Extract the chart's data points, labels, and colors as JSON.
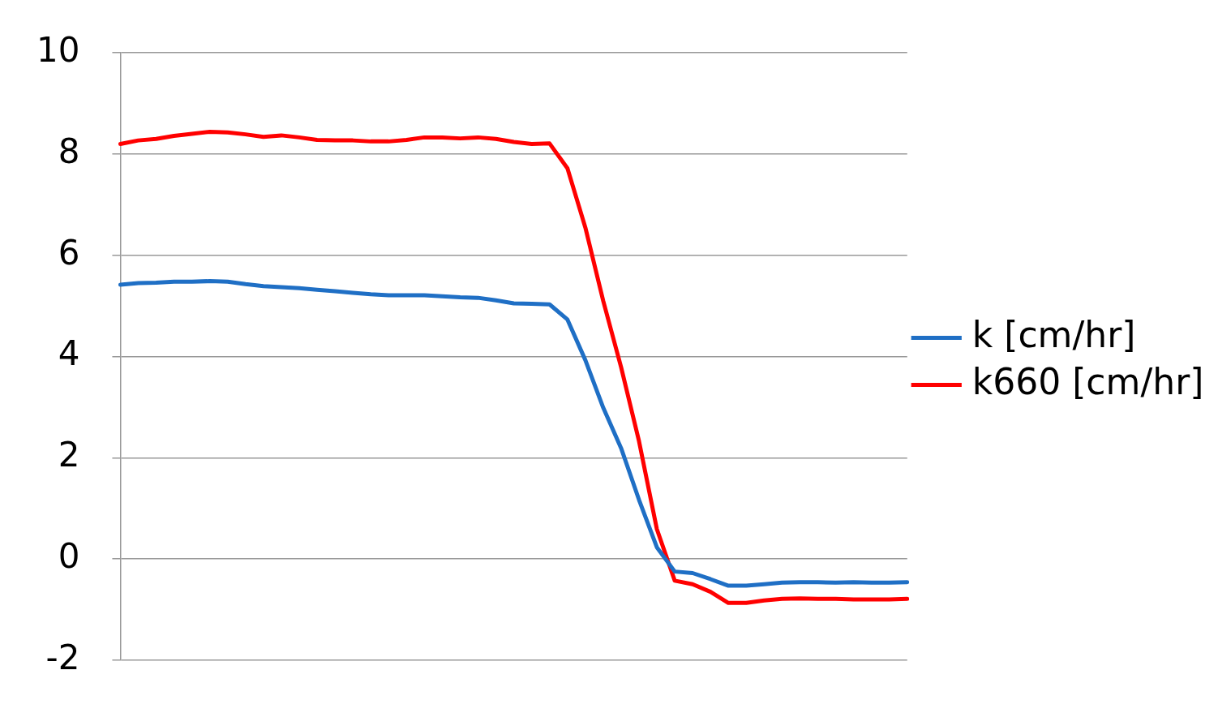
{
  "chart_data": {
    "type": "line",
    "categories": [
      null,
      null,
      null,
      null,
      null,
      null,
      null,
      null,
      null,
      null,
      null,
      null,
      null,
      null,
      null,
      null,
      null,
      null,
      null,
      null,
      null,
      null,
      null,
      null,
      null,
      null,
      null,
      null,
      null,
      null,
      null,
      null,
      null,
      null,
      null,
      null,
      null,
      null,
      null,
      null,
      null,
      null,
      null,
      null,
      null
    ],
    "series": [
      {
        "name": "k [cm/hr]",
        "color": "#1f6fc5",
        "values": [
          5.42,
          5.45,
          5.46,
          5.48,
          5.48,
          5.49,
          5.48,
          5.43,
          5.39,
          5.37,
          5.35,
          5.32,
          5.29,
          5.26,
          5.23,
          5.21,
          5.21,
          5.21,
          5.19,
          5.17,
          5.16,
          5.11,
          5.05,
          5.04,
          5.03,
          4.73,
          3.93,
          2.99,
          2.19,
          1.17,
          0.23,
          -0.25,
          -0.28,
          -0.4,
          -0.53,
          -0.53,
          -0.5,
          -0.47,
          -0.46,
          -0.46,
          -0.47,
          -0.46,
          -0.47,
          -0.47,
          -0.46
        ]
      },
      {
        "name": "k660 [cm/hr]",
        "color": "#ff0000",
        "values": [
          8.2,
          8.27,
          8.3,
          8.36,
          8.4,
          8.44,
          8.43,
          8.39,
          8.34,
          8.37,
          8.33,
          8.28,
          8.27,
          8.27,
          8.25,
          8.25,
          8.28,
          8.33,
          8.33,
          8.31,
          8.33,
          8.3,
          8.24,
          8.2,
          8.21,
          7.72,
          6.55,
          5.1,
          3.79,
          2.33,
          0.59,
          -0.43,
          -0.5,
          -0.65,
          -0.87,
          -0.87,
          -0.82,
          -0.79,
          -0.78,
          -0.79,
          -0.79,
          -0.8,
          -0.8,
          -0.8,
          -0.79
        ]
      }
    ],
    "ylim": [
      -2,
      10
    ],
    "yticks": [
      -2,
      0,
      2,
      4,
      6,
      8,
      10
    ],
    "grid": "y",
    "legend": "right",
    "tick_labels": "y",
    "marker": "none",
    "line_style": "solid"
  }
}
